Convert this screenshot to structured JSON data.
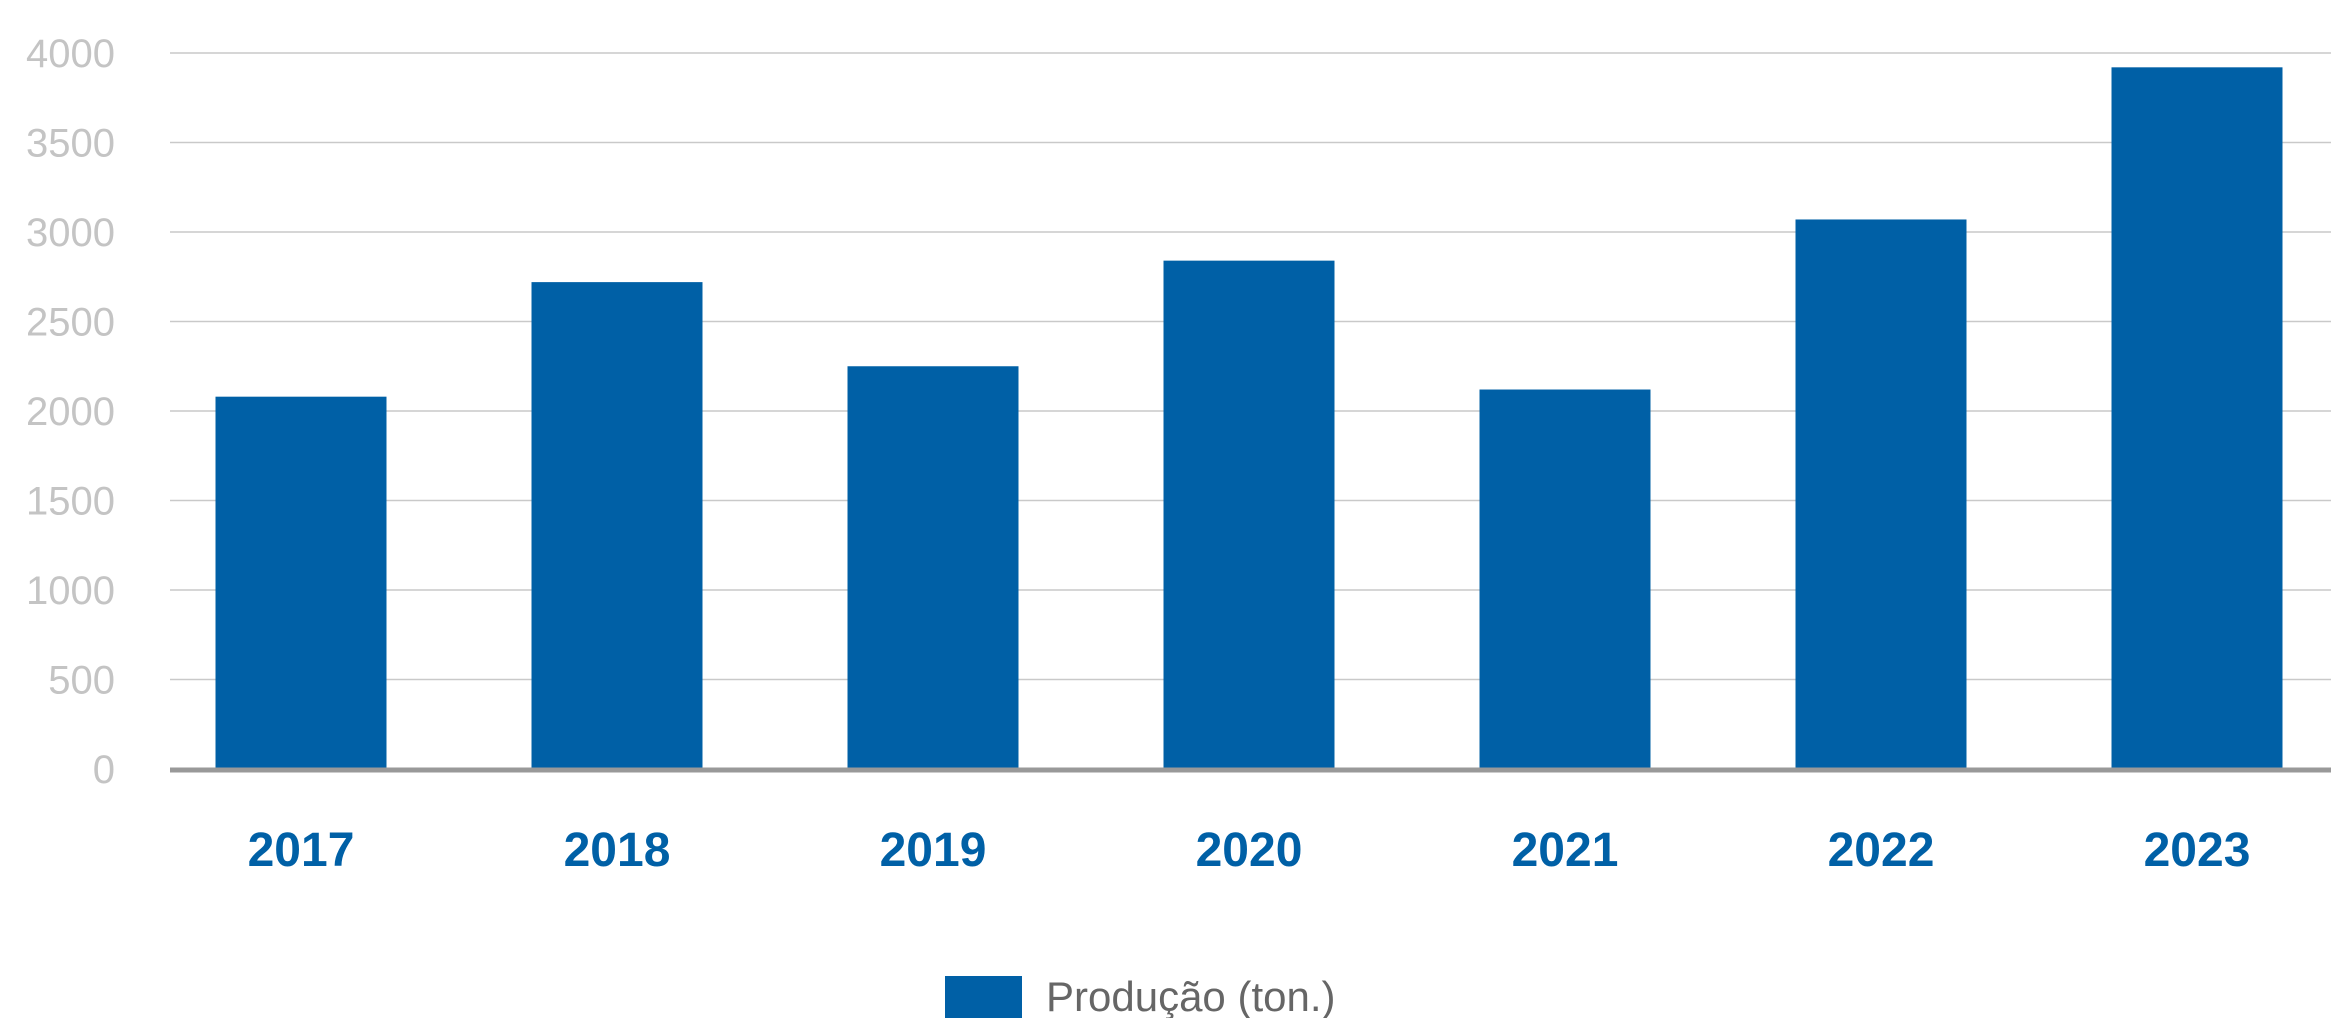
{
  "chart_data": {
    "type": "bar",
    "categories": [
      "2017",
      "2018",
      "2019",
      "2020",
      "2021",
      "2022",
      "2023"
    ],
    "series": [
      {
        "name": "Produção (ton.)",
        "values": [
          2080,
          2720,
          2250,
          2840,
          2120,
          3070,
          3920
        ]
      }
    ],
    "title": "",
    "xlabel": "",
    "ylabel": "",
    "ylim": [
      0,
      4000
    ],
    "yticks": [
      0,
      500,
      1000,
      1500,
      2000,
      2500,
      3000,
      3500,
      4000
    ],
    "grid": true,
    "legend_position": "bottom-center"
  },
  "colors": {
    "bar": "#0060a6",
    "x_tick_label": "#0060a6",
    "y_tick_label": "#c4c4c4",
    "gridline": "#c9c9c9",
    "axis_line": "#999999",
    "legend_text": "#666666"
  }
}
